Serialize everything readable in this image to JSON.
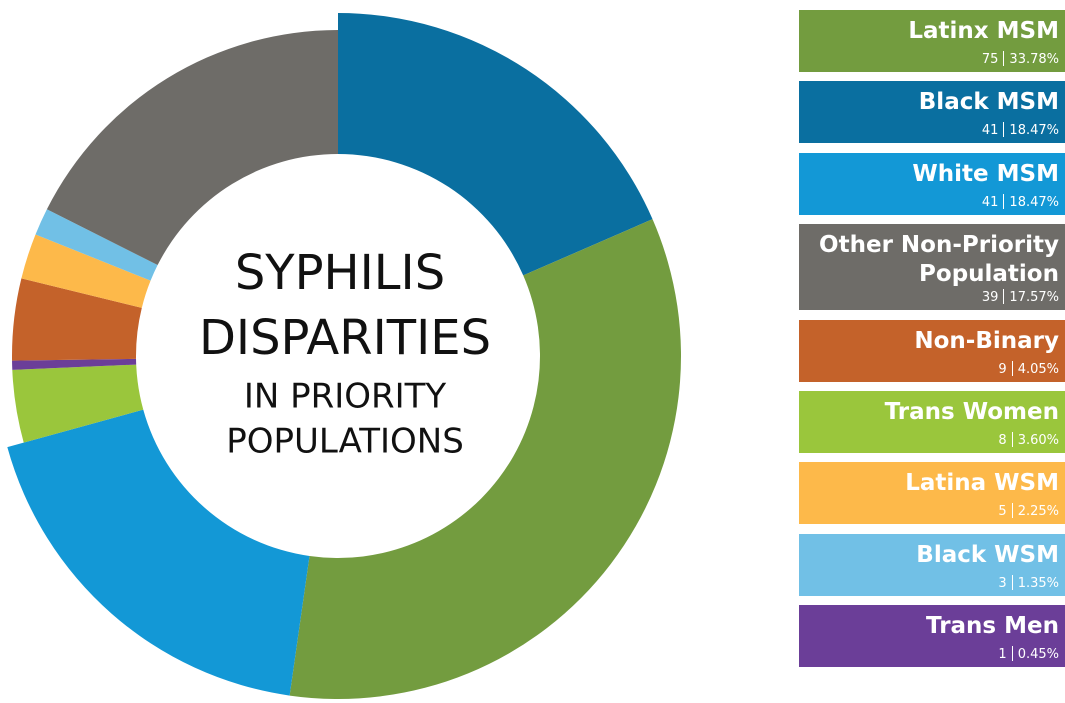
{
  "chart_data": {
    "type": "pie",
    "title_lines": [
      "SYPHILIS",
      "DISPARITIES"
    ],
    "subtitle_lines": [
      "IN PRIORITY",
      "POPULATIONS"
    ],
    "categories": [
      "Latinx MSM",
      "Black MSM",
      "White MSM",
      "Other Non-Priority Population",
      "Non-Binary",
      "Trans Women",
      "Latina WSM",
      "Black WSM",
      "Trans Men"
    ],
    "values": [
      75,
      41,
      41,
      39,
      9,
      8,
      5,
      3,
      1
    ],
    "percent_labels": [
      "33.78%",
      "18.47%",
      "18.47%",
      "17.57%",
      "4.05%",
      "3.60%",
      "2.25%",
      "1.35%",
      "0.45%"
    ],
    "colors": [
      "#739c3f",
      "#0a6fa0",
      "#1398d6",
      "#6e6c68",
      "#c4622a",
      "#9ac63c",
      "#fdb94a",
      "#71c0e6",
      "#6b3e98"
    ]
  }
}
